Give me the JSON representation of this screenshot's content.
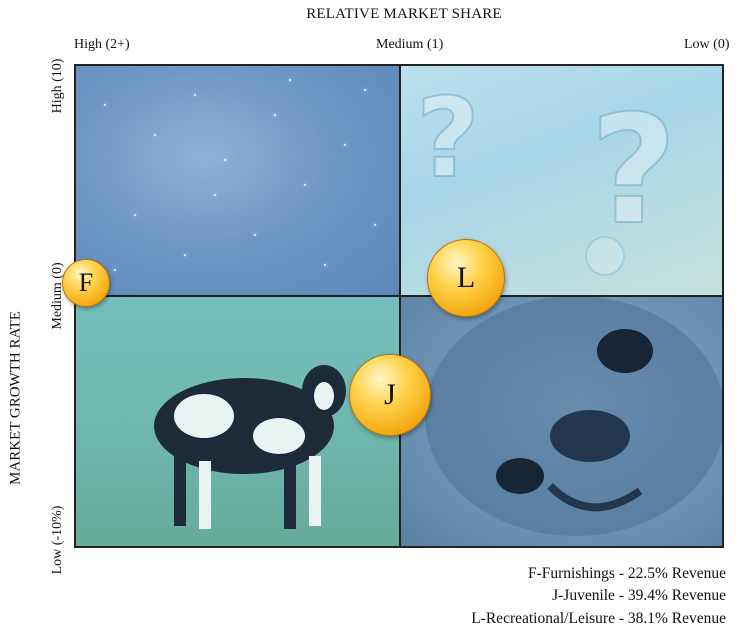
{
  "x_axis": {
    "title": "RELATIVE MARKET SHARE",
    "ticks": [
      "High (2+)",
      "Medium (1)",
      "Low (0)"
    ]
  },
  "y_axis": {
    "title": "MARKET GROWTH RATE",
    "ticks": [
      "High (10)",
      "Medium (0)",
      "Low (-10%)"
    ]
  },
  "quadrants": [
    {
      "name": "top-left",
      "image": "starfield"
    },
    {
      "name": "top-right",
      "image": "question-marks"
    },
    {
      "name": "bottom-left",
      "image": "cow"
    },
    {
      "name": "bottom-right",
      "image": "pug-dog"
    }
  ],
  "points": [
    {
      "label": "F"
    },
    {
      "label": "L"
    },
    {
      "label": "J"
    }
  ],
  "legend": [
    "F-Furnishings - 22.5% Revenue",
    "J-Juvenile - 39.4% Revenue",
    "L-Recreational/Leisure - 38.1% Revenue"
  ],
  "colors": {
    "ball": "#f4a810",
    "grid_line": "#222222"
  }
}
